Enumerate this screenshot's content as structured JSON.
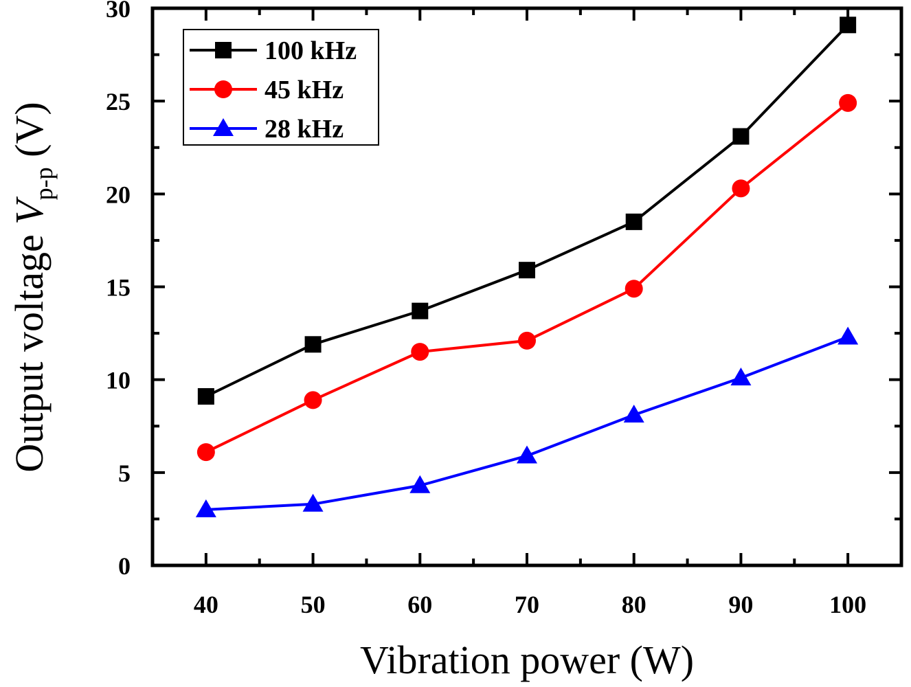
{
  "chart_data": {
    "type": "line",
    "title": "",
    "xlabel": "Vibration power (W)",
    "ylabel_main": "Output voltage ",
    "ylabel_var": "V",
    "ylabel_sub": "p-p",
    "ylabel_unit": " (V)",
    "x": [
      40,
      50,
      60,
      70,
      80,
      90,
      100
    ],
    "xlim": [
      35,
      105
    ],
    "ylim": [
      0,
      30
    ],
    "xticks": [
      40,
      50,
      60,
      70,
      80,
      90,
      100
    ],
    "yticks": [
      0,
      5,
      10,
      15,
      20,
      25,
      30
    ],
    "grid": false,
    "legend_position": "top-left",
    "series": [
      {
        "name": "100 kHz",
        "color": "#000000",
        "marker": "square",
        "values": [
          9.1,
          11.9,
          13.7,
          15.9,
          18.5,
          23.1,
          29.1
        ]
      },
      {
        "name": "45 kHz",
        "color": "#ff0000",
        "marker": "circle",
        "values": [
          6.1,
          8.9,
          11.5,
          12.1,
          14.9,
          20.3,
          24.9
        ]
      },
      {
        "name": "28 kHz",
        "color": "#0000ff",
        "marker": "triangle",
        "values": [
          3.0,
          3.3,
          4.3,
          5.9,
          8.1,
          10.1,
          12.3
        ]
      }
    ]
  }
}
